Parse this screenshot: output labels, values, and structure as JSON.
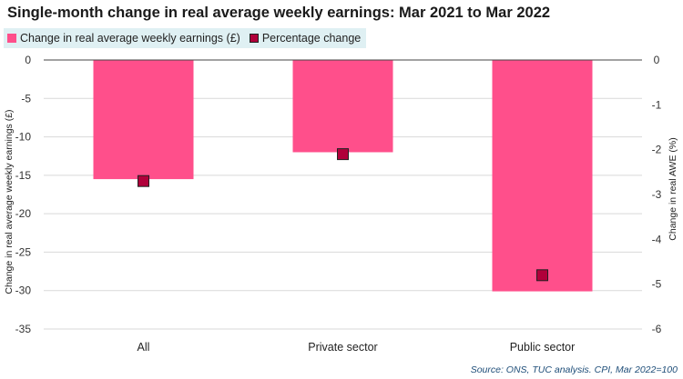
{
  "chart_data": {
    "type": "bar",
    "title": "Single-month change in real average weekly earnings: Mar 2021 to Mar 2022",
    "categories": [
      "All",
      "Private sector",
      "Public sector"
    ],
    "series": [
      {
        "name": "Change in real average weekly earnings (£)",
        "kind": "bar",
        "axis": "left",
        "color": "#ff4f8b",
        "values": [
          -15.5,
          -12.0,
          -30.1
        ]
      },
      {
        "name": "Percentage change",
        "kind": "marker",
        "axis": "right",
        "color": "#b0003a",
        "values": [
          -2.7,
          -2.1,
          -4.8
        ]
      }
    ],
    "ylabel": "Change in real average weekly  earnings (£)",
    "y2label": "Change in real AWE (%)",
    "ylim": [
      -35,
      0
    ],
    "y2lim": [
      -6,
      0
    ],
    "yticks": [
      0,
      -5,
      -10,
      -15,
      -20,
      -25,
      -30,
      -35
    ],
    "y2ticks": [
      0,
      -1,
      -2,
      -3,
      -4,
      -5,
      -6
    ],
    "grid": true,
    "legend_position": "top-left",
    "source": "Source: ONS, TUC analysis.  CPI, Mar 2022=100"
  }
}
